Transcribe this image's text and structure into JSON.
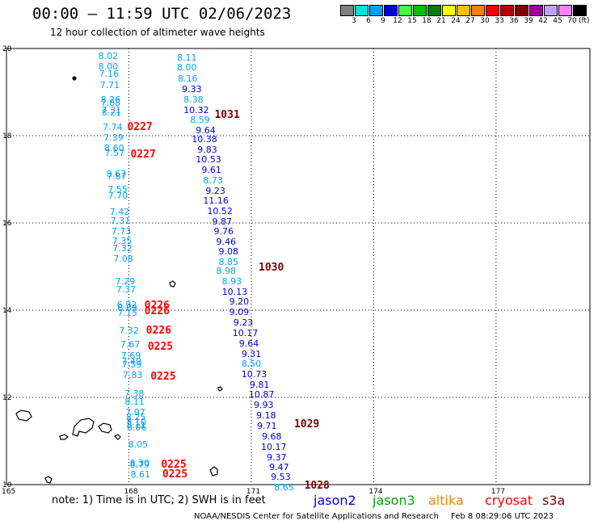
{
  "header": {
    "title": "00:00 – 11:59 UTC 02/06/2023",
    "subtitle": "12 hour collection of altimeter wave heights"
  },
  "legend": {
    "unit": "(ft)",
    "bins": [
      {
        "label": "3",
        "color": "#808080"
      },
      {
        "label": "6",
        "color": "#00e0e0"
      },
      {
        "label": "9",
        "color": "#00a0ff"
      },
      {
        "label": "12",
        "color": "#0000e0"
      },
      {
        "label": "15",
        "color": "#40ff40"
      },
      {
        "label": "18",
        "color": "#00c000"
      },
      {
        "label": "21",
        "color": "#008000"
      },
      {
        "label": "24",
        "color": "#ffff00"
      },
      {
        "label": "27",
        "color": "#ffc000"
      },
      {
        "label": "30",
        "color": "#ff8000"
      },
      {
        "label": "33",
        "color": "#ff0000"
      },
      {
        "label": "36",
        "color": "#c00000"
      },
      {
        "label": "39",
        "color": "#800000"
      },
      {
        "label": "42",
        "color": "#a000a0"
      },
      {
        "label": "45",
        "color": "#c0a0ff"
      },
      {
        "label": "70",
        "color": "#ff80ff"
      },
      {
        "label": "",
        "color": "#000000"
      }
    ]
  },
  "map": {
    "lat_labels": [
      "20",
      "18",
      "16",
      "14",
      "12",
      "10"
    ],
    "lon_labels": [
      "165",
      "168",
      "171",
      "174",
      "177"
    ],
    "lat_range": [
      10,
      20
    ],
    "lon_range": [
      165,
      179.3
    ]
  },
  "observations": {
    "light_blue_track": [
      {
        "v": "8.02",
        "lat": 19.82,
        "lon": 167.25
      },
      {
        "v": "8.00",
        "lat": 19.58,
        "lon": 167.25
      },
      {
        "v": "7.16",
        "lat": 19.4,
        "lon": 167.27
      },
      {
        "v": "7.71",
        "lat": 19.14,
        "lon": 167.29
      },
      {
        "v": "8.26",
        "lat": 18.82,
        "lon": 167.31
      },
      {
        "v": "7.88",
        "lat": 18.74,
        "lon": 167.31
      },
      {
        "v": "7.31",
        "lat": 18.58,
        "lon": 167.33
      },
      {
        "v": "8.21",
        "lat": 18.52,
        "lon": 167.33
      },
      {
        "v": "7.74",
        "lat": 18.18,
        "lon": 167.36
      },
      {
        "v": "7.39",
        "lat": 17.95,
        "lon": 167.38
      },
      {
        "v": "8.60",
        "lat": 17.7,
        "lon": 167.4
      },
      {
        "v": "7.57",
        "lat": 17.6,
        "lon": 167.41
      },
      {
        "v": "8.67",
        "lat": 17.12,
        "lon": 167.45
      },
      {
        "v": "7.87",
        "lat": 17.05,
        "lon": 167.46
      },
      {
        "v": "7.55",
        "lat": 16.76,
        "lon": 167.48
      },
      {
        "v": "7.70",
        "lat": 16.62,
        "lon": 167.49
      },
      {
        "v": "7.42",
        "lat": 16.24,
        "lon": 167.53
      },
      {
        "v": "7.31",
        "lat": 16.03,
        "lon": 167.55
      },
      {
        "v": "7.73",
        "lat": 15.8,
        "lon": 167.57
      },
      {
        "v": "7.35",
        "lat": 15.58,
        "lon": 167.59
      },
      {
        "v": "7.32",
        "lat": 15.4,
        "lon": 167.6
      },
      {
        "v": "7.08",
        "lat": 15.16,
        "lon": 167.62
      },
      {
        "v": "7.29",
        "lat": 14.64,
        "lon": 167.67
      },
      {
        "v": "7.37",
        "lat": 14.46,
        "lon": 167.69
      },
      {
        "v": "6.92",
        "lat": 14.12,
        "lon": 167.71
      },
      {
        "v": "6.89",
        "lat": 14.04,
        "lon": 167.72
      },
      {
        "v": "7.15",
        "lat": 13.93,
        "lon": 167.72
      },
      {
        "v": "7.32",
        "lat": 13.52,
        "lon": 167.76
      },
      {
        "v": "7.67",
        "lat": 13.2,
        "lon": 167.79
      },
      {
        "v": "7.69",
        "lat": 12.95,
        "lon": 167.81
      },
      {
        "v": "7.49",
        "lat": 12.82,
        "lon": 167.82
      },
      {
        "v": "7.59",
        "lat": 12.74,
        "lon": 167.83
      },
      {
        "v": "7.83",
        "lat": 12.5,
        "lon": 167.85
      },
      {
        "v": "7.38",
        "lat": 12.07,
        "lon": 167.89
      },
      {
        "v": "8.11",
        "lat": 11.88,
        "lon": 167.9
      },
      {
        "v": "7.97",
        "lat": 11.64,
        "lon": 167.92
      },
      {
        "v": "8.25",
        "lat": 11.54,
        "lon": 167.93
      },
      {
        "v": "8.10",
        "lat": 11.42,
        "lon": 167.94
      },
      {
        "v": "8.11",
        "lat": 11.36,
        "lon": 167.94
      },
      {
        "v": "8.06",
        "lat": 11.3,
        "lon": 167.95
      },
      {
        "v": "8.05",
        "lat": 10.9,
        "lon": 167.98
      },
      {
        "v": "8.30",
        "lat": 10.48,
        "lon": 168.02
      },
      {
        "v": "8.79",
        "lat": 10.44,
        "lon": 168.02
      },
      {
        "v": "8.61",
        "lat": 10.22,
        "lon": 168.04
      }
    ],
    "dark_blue_track": [
      {
        "v": "8.11",
        "lat": 19.78,
        "lon": 169.18,
        "c": "#00a0ff"
      },
      {
        "v": "8.00",
        "lat": 19.56,
        "lon": 169.18,
        "c": "#00a0ff"
      },
      {
        "v": "8.16",
        "lat": 19.3,
        "lon": 169.2,
        "c": "#00a0ff"
      },
      {
        "v": "9.33",
        "lat": 19.06,
        "lon": 169.3,
        "c": "#0000e0"
      },
      {
        "v": "8.38",
        "lat": 18.82,
        "lon": 169.34,
        "c": "#00a0ff"
      },
      {
        "v": "10.32",
        "lat": 18.58,
        "lon": 169.34,
        "c": "#0000e0"
      },
      {
        "v": "8.59",
        "lat": 18.35,
        "lon": 169.5,
        "c": "#00a0ff"
      },
      {
        "v": "9.64",
        "lat": 18.12,
        "lon": 169.64,
        "c": "#0000e0"
      },
      {
        "v": "10.38",
        "lat": 17.9,
        "lon": 169.54,
        "c": "#0000e0"
      },
      {
        "v": "9.83",
        "lat": 17.66,
        "lon": 169.68,
        "c": "#0000e0"
      },
      {
        "v": "10.53",
        "lat": 17.44,
        "lon": 169.64,
        "c": "#0000e0"
      },
      {
        "v": "9.61",
        "lat": 17.2,
        "lon": 169.78,
        "c": "#0000e0"
      },
      {
        "v": "8.73",
        "lat": 16.96,
        "lon": 169.82,
        "c": "#00a0ff"
      },
      {
        "v": "9.23",
        "lat": 16.72,
        "lon": 169.88,
        "c": "#0000e0"
      },
      {
        "v": "11.16",
        "lat": 16.5,
        "lon": 169.82,
        "c": "#0000e0"
      },
      {
        "v": "10.52",
        "lat": 16.26,
        "lon": 169.92,
        "c": "#0000e0"
      },
      {
        "v": "9.87",
        "lat": 16.02,
        "lon": 170.04,
        "c": "#0000e0"
      },
      {
        "v": "9.76",
        "lat": 15.8,
        "lon": 170.08,
        "c": "#0000e0"
      },
      {
        "v": "9.46",
        "lat": 15.56,
        "lon": 170.14,
        "c": "#0000e0"
      },
      {
        "v": "9.08",
        "lat": 15.34,
        "lon": 170.2,
        "c": "#0000e0"
      },
      {
        "v": "8.85",
        "lat": 15.1,
        "lon": 170.2,
        "c": "#00a0ff"
      },
      {
        "v": "8.98",
        "lat": 14.88,
        "lon": 170.14,
        "c": "#00a0ff"
      },
      {
        "v": "8.93",
        "lat": 14.64,
        "lon": 170.28,
        "c": "#00a0ff"
      },
      {
        "v": "10.13",
        "lat": 14.4,
        "lon": 170.28,
        "c": "#0000e0"
      },
      {
        "v": "9.20",
        "lat": 14.18,
        "lon": 170.46,
        "c": "#0000e0"
      },
      {
        "v": "9.09",
        "lat": 13.94,
        "lon": 170.46,
        "c": "#0000e0"
      },
      {
        "v": "9.23",
        "lat": 13.7,
        "lon": 170.56,
        "c": "#0000e0"
      },
      {
        "v": "10.17",
        "lat": 13.46,
        "lon": 170.54,
        "c": "#0000e0"
      },
      {
        "v": "9.64",
        "lat": 13.22,
        "lon": 170.7,
        "c": "#0000e0"
      },
      {
        "v": "9.31",
        "lat": 12.98,
        "lon": 170.76,
        "c": "#0000e0"
      },
      {
        "v": "8.50",
        "lat": 12.76,
        "lon": 170.76,
        "c": "#00a0ff"
      },
      {
        "v": "10.73",
        "lat": 12.52,
        "lon": 170.76,
        "c": "#0000e0"
      },
      {
        "v": "9.81",
        "lat": 12.28,
        "lon": 170.96,
        "c": "#0000e0"
      },
      {
        "v": "10.87",
        "lat": 12.06,
        "lon": 170.94,
        "c": "#0000e0"
      },
      {
        "v": "9.93",
        "lat": 11.82,
        "lon": 171.06,
        "c": "#0000e0"
      },
      {
        "v": "9.18",
        "lat": 11.58,
        "lon": 171.12,
        "c": "#0000e0"
      },
      {
        "v": "9.71",
        "lat": 11.34,
        "lon": 171.14,
        "c": "#0000e0"
      },
      {
        "v": "9.68",
        "lat": 11.1,
        "lon": 171.26,
        "c": "#0000e0"
      },
      {
        "v": "10.17",
        "lat": 10.86,
        "lon": 171.24,
        "c": "#0000e0"
      },
      {
        "v": "9.37",
        "lat": 10.62,
        "lon": 171.38,
        "c": "#0000e0"
      },
      {
        "v": "9.47",
        "lat": 10.38,
        "lon": 171.44,
        "c": "#0000e0"
      },
      {
        "v": "9.53",
        "lat": 10.16,
        "lon": 171.48,
        "c": "#0000e0"
      },
      {
        "v": "8.65",
        "lat": 9.92,
        "lon": 171.56,
        "c": "#00a0ff"
      }
    ],
    "pass_times_red": [
      {
        "v": "0227",
        "lat": 18.2,
        "lon": 167.96
      },
      {
        "v": "0227",
        "lat": 17.58,
        "lon": 168.04
      },
      {
        "v": "0226",
        "lat": 14.12,
        "lon": 168.38
      },
      {
        "v": "0226",
        "lat": 13.98,
        "lon": 168.38
      },
      {
        "v": "0226",
        "lat": 13.54,
        "lon": 168.42
      },
      {
        "v": "0225",
        "lat": 13.17,
        "lon": 168.46
      },
      {
        "v": "0225",
        "lat": 12.48,
        "lon": 168.53
      },
      {
        "v": "0225",
        "lat": 10.46,
        "lon": 168.79
      },
      {
        "v": "0225",
        "lat": 10.24,
        "lon": 168.82
      }
    ],
    "pass_times_darkred": [
      {
        "v": "1031",
        "lat": 18.48,
        "lon": 170.1
      },
      {
        "v": "1030",
        "lat": 14.98,
        "lon": 171.18
      },
      {
        "v": "1029",
        "lat": 11.38,
        "lon": 172.05
      },
      {
        "v": "1028",
        "lat": 9.98,
        "lon": 172.3
      }
    ]
  },
  "footer": {
    "note": "note: 1) Time is in UTC; 2) SWH is in feet",
    "satellites": [
      {
        "name": "jason2",
        "color": "#0000e0"
      },
      {
        "name": "jason3",
        "color": "#00a000"
      },
      {
        "name": "altika",
        "color": "#ff8000"
      },
      {
        "name": "cryosat",
        "color": "#ff0000"
      },
      {
        "name": "s3a",
        "color": "#800000"
      }
    ],
    "credit": "NOAA/NESDIS Center for Satellite Applications and Research",
    "timestamp": "Feb  8 08:29:06 UTC 2023"
  }
}
